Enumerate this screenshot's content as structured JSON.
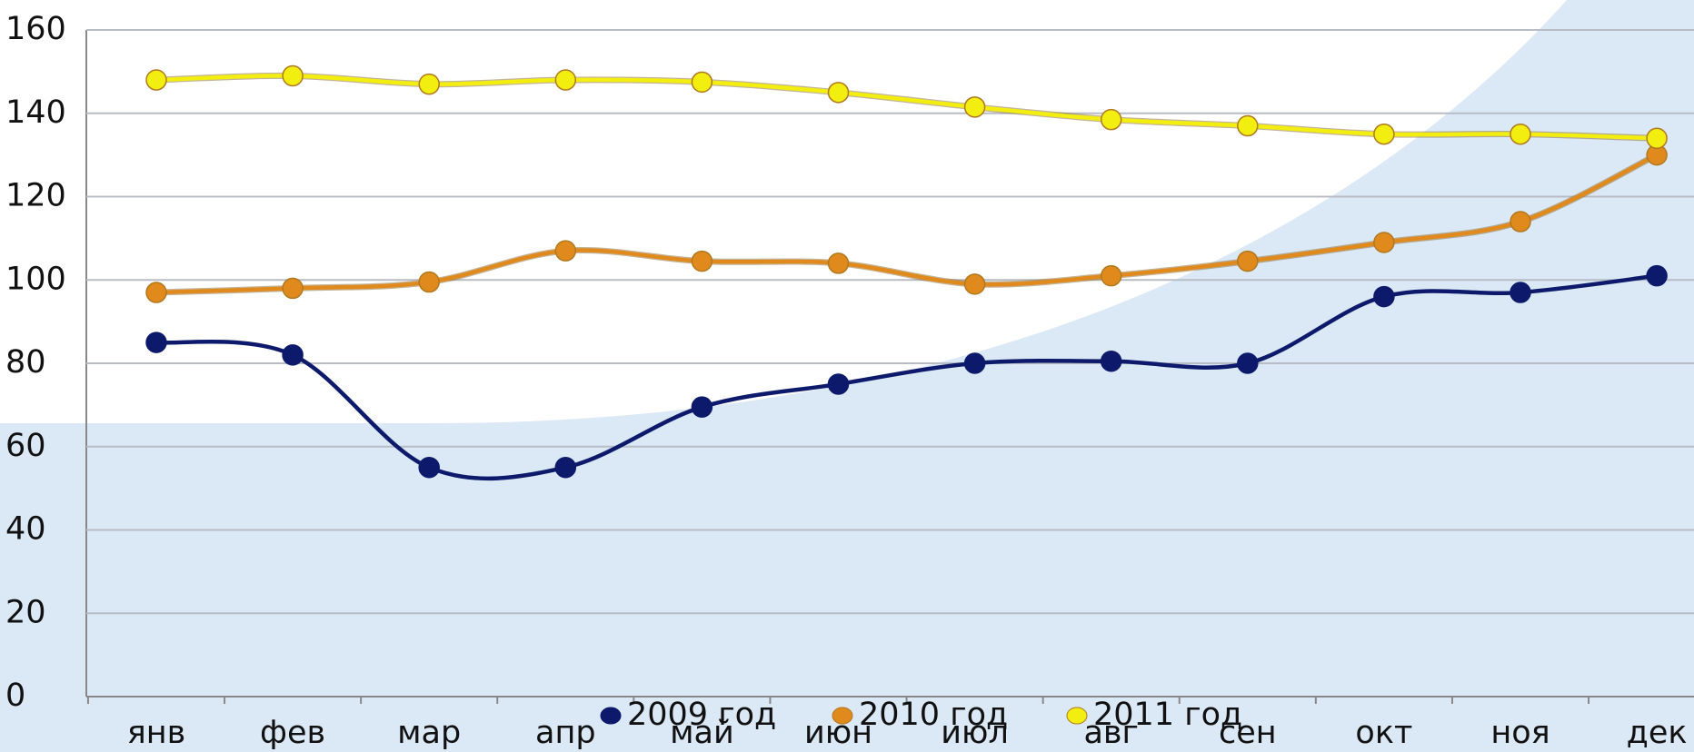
{
  "chart_data": {
    "type": "line",
    "categories": [
      "янв",
      "фев",
      "мар",
      "апр",
      "май",
      "июн",
      "июл",
      "авг",
      "сен",
      "окт",
      "ноя",
      "дек"
    ],
    "series": [
      {
        "name": "2009 год",
        "color": "#0d1a6b",
        "values": [
          85,
          82,
          55,
          55,
          69.5,
          75,
          80,
          80.5,
          80,
          96,
          97,
          101
        ]
      },
      {
        "name": "2010 год",
        "color": "#e08a1e",
        "values": [
          97,
          98,
          99.5,
          107,
          104.5,
          104,
          99,
          101,
          104.5,
          109,
          114,
          130
        ]
      },
      {
        "name": "2011 год",
        "color": "#f2ee10",
        "values": [
          148,
          149,
          147,
          148,
          147.5,
          145,
          141.5,
          138.5,
          137,
          135,
          135,
          134
        ]
      }
    ],
    "ylim": [
      0,
      160
    ],
    "yticks": [
      0,
      20,
      40,
      60,
      80,
      100,
      120,
      140,
      160
    ],
    "grid": true
  }
}
